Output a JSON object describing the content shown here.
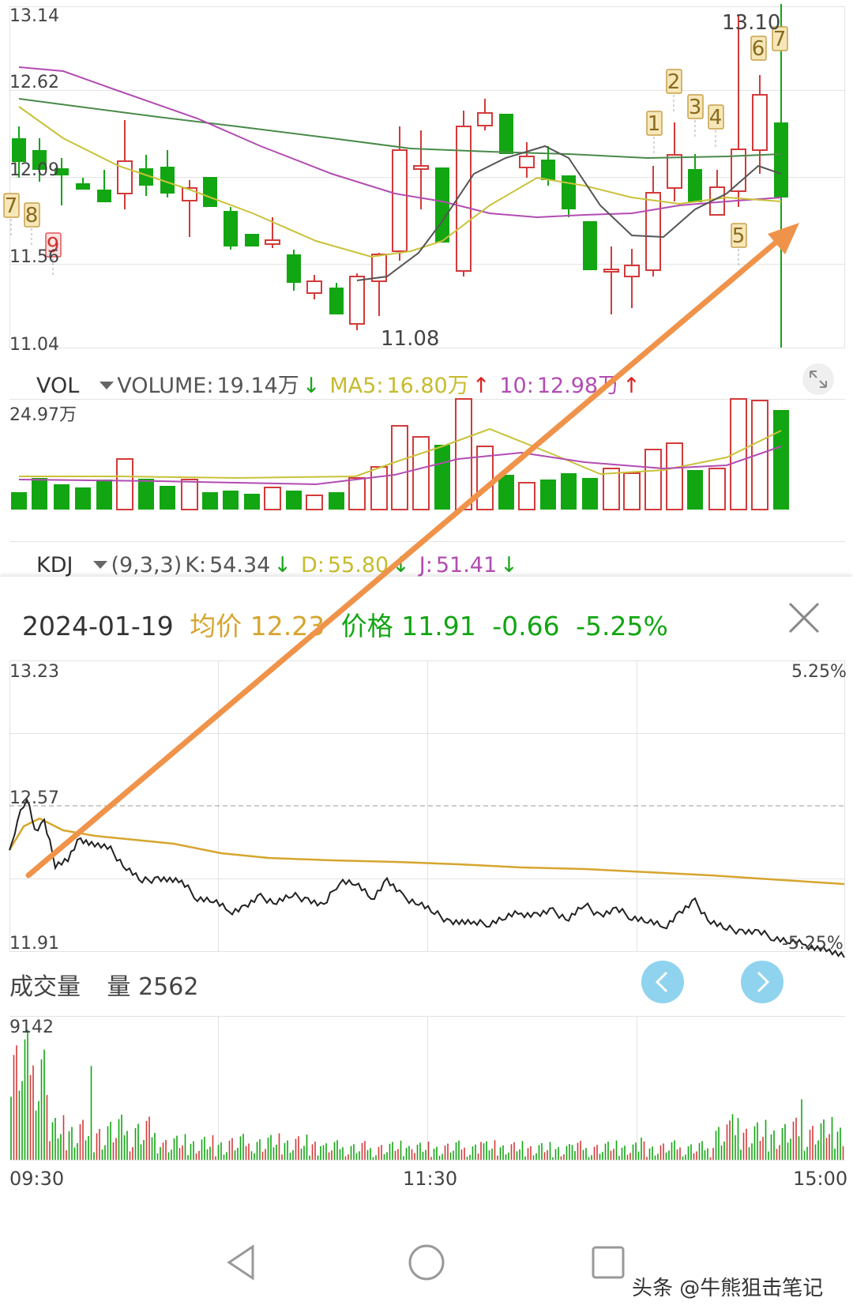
{
  "kline": {
    "price_labels": [
      "13.14",
      "12.62",
      "12.09",
      "11.56",
      "11.04"
    ],
    "high_annotation": "13.10",
    "low_annotation": "11.08",
    "markers": [
      "1",
      "2",
      "3",
      "4",
      "5",
      "6",
      "7",
      "7",
      "8",
      "9"
    ]
  },
  "vol_indicator": {
    "name": "VOL",
    "volume_label": "VOLUME:",
    "volume_value": "19.14万",
    "volume_arrow": "↓",
    "ma5_label": "MA5:",
    "ma5_value": "16.80万",
    "ma5_arrow": "↑",
    "ma10_label": "10:",
    "ma10_value": "12.98万",
    "ma10_arrow": "↑",
    "max_label": "24.97万"
  },
  "kdj_indicator": {
    "name": "KDJ",
    "params": "(9,3,3)",
    "k_label": "K:",
    "k_value": "54.34",
    "k_arrow": "↓",
    "d_label": "D:",
    "d_value": "55.80",
    "d_arrow": "↓",
    "j_label": "J:",
    "j_value": "51.41",
    "j_arrow": "↓"
  },
  "intraday": {
    "date": "2024-01-19",
    "avg_label": "均价",
    "avg_value": "12.23",
    "price_label": "价格",
    "price_value": "11.91",
    "change": "-0.66",
    "change_pct": "-5.25%",
    "top_price": "13.23",
    "mid_price": "12.57",
    "bottom_price": "11.91",
    "top_pct": "5.25%",
    "bottom_pct": "-5.25%"
  },
  "volume_panel": {
    "title": "成交量",
    "qty_label": "量",
    "qty_value": "2562",
    "max_value": "9142",
    "time_start": "09:30",
    "time_mid": "11:30",
    "time_end": "15:00"
  },
  "watermark": "头条 @牛熊狙击笔记",
  "colors": {
    "up": "#d33a3a",
    "down": "#12a612",
    "ma5": "#555555",
    "ma10": "#c9c23a",
    "ma20": "#b24cb2",
    "ma60": "#4a8a4a",
    "avg_line": "#d6a52e",
    "arrow": "#f0934a"
  }
}
